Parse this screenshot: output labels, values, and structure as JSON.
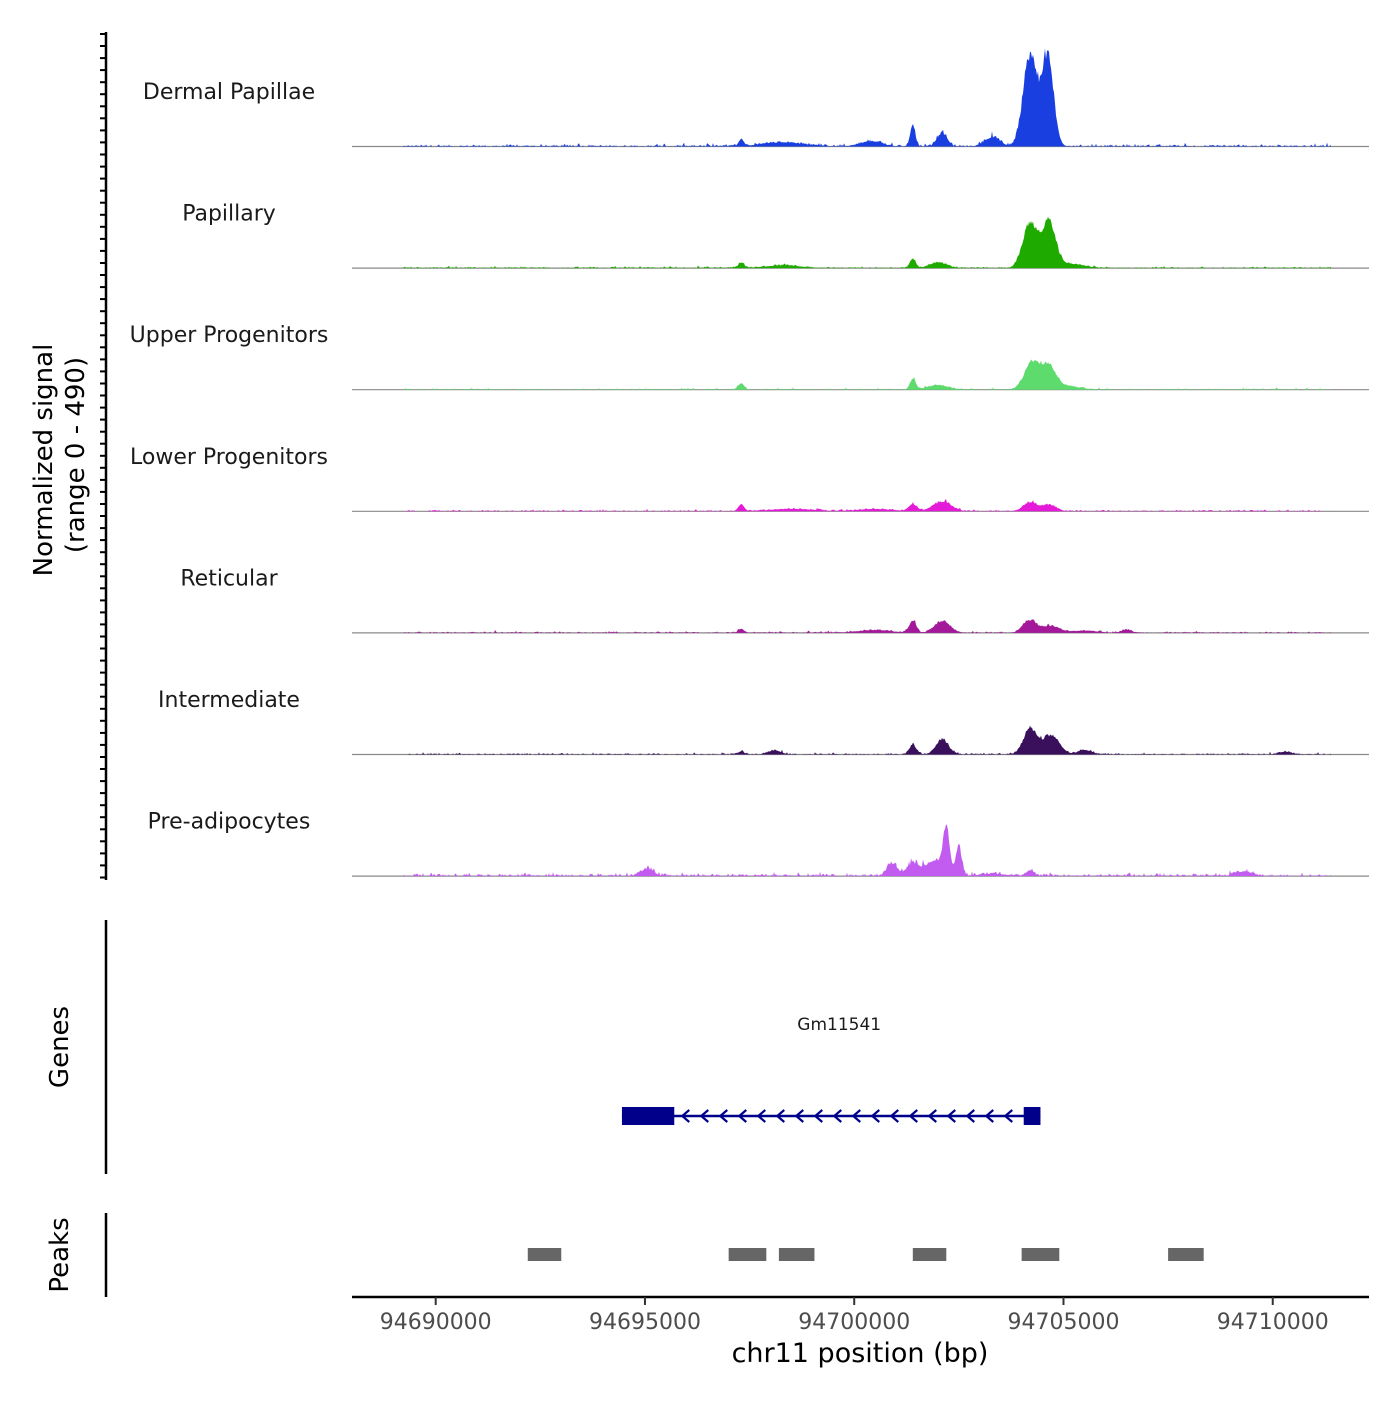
{
  "chart_data": {
    "type": "area",
    "ylabel_line1": "Normalized signal",
    "ylabel_line2": "(range 0 - 490)",
    "y_range": [
      0,
      490
    ],
    "xlabel": "chr11 position (bp)",
    "xlim": [
      94688000,
      94712300
    ],
    "x_ticks": [
      94690000,
      94695000,
      94700000,
      94705000,
      94710000
    ],
    "x_tick_labels": [
      "94690000",
      "94695000",
      "94700000",
      "94705000",
      "94710000"
    ],
    "signal_start": 94689200,
    "signal_end": 94711400,
    "tracks": [
      {
        "name": "Dermal Papillae",
        "color": "#1a3fe0",
        "peaks": [
          [
            94704200,
            405,
            160
          ],
          [
            94704620,
            400,
            140
          ],
          [
            94701400,
            95,
            60
          ],
          [
            94702100,
            60,
            120
          ],
          [
            94703300,
            40,
            180
          ],
          [
            94697300,
            30,
            60
          ],
          [
            94700400,
            22,
            250
          ],
          [
            94698300,
            18,
            500
          ]
        ],
        "noise": 9
      },
      {
        "name": "Papillary",
        "color": "#1faa00",
        "peaks": [
          [
            94704200,
            200,
            170
          ],
          [
            94704650,
            205,
            160
          ],
          [
            94701400,
            40,
            70
          ],
          [
            94702000,
            25,
            200
          ],
          [
            94697300,
            22,
            70
          ],
          [
            94705200,
            18,
            300
          ],
          [
            94698300,
            12,
            400
          ]
        ],
        "noise": 6
      },
      {
        "name": "Upper Progenitors",
        "color": "#5ddb6c",
        "peaks": [
          [
            94704250,
            120,
            180
          ],
          [
            94704650,
            100,
            170
          ],
          [
            94701400,
            45,
            70
          ],
          [
            94702000,
            20,
            250
          ],
          [
            94697300,
            28,
            70
          ],
          [
            94705100,
            15,
            300
          ]
        ],
        "noise": 5
      },
      {
        "name": "Lower Progenitors",
        "color": "#e51ad8",
        "peaks": [
          [
            94704200,
            38,
            160
          ],
          [
            94704650,
            28,
            170
          ],
          [
            94701400,
            30,
            100
          ],
          [
            94702100,
            42,
            220
          ],
          [
            94697300,
            30,
            70
          ],
          [
            94700500,
            10,
            400
          ],
          [
            94698500,
            10,
            500
          ]
        ],
        "noise": 6
      },
      {
        "name": "Reticular",
        "color": "#a3199a",
        "peaks": [
          [
            94704200,
            55,
            160
          ],
          [
            94704700,
            30,
            200
          ],
          [
            94701400,
            55,
            80
          ],
          [
            94702100,
            52,
            180
          ],
          [
            94697300,
            18,
            70
          ],
          [
            94706500,
            14,
            120
          ],
          [
            94700500,
            12,
            400
          ],
          [
            94705500,
            10,
            300
          ]
        ],
        "noise": 6
      },
      {
        "name": "Intermediate",
        "color": "#3a0f5c",
        "peaks": [
          [
            94704200,
            110,
            160
          ],
          [
            94704700,
            85,
            200
          ],
          [
            94701400,
            40,
            90
          ],
          [
            94702100,
            65,
            150
          ],
          [
            94705500,
            20,
            150
          ],
          [
            94698100,
            18,
            150
          ],
          [
            94697300,
            14,
            70
          ],
          [
            94710300,
            12,
            150
          ]
        ],
        "noise": 6
      },
      {
        "name": "Pre-adipocytes",
        "color": "#c25cf0",
        "peaks": [
          [
            94702200,
            200,
            80
          ],
          [
            94702500,
            130,
            70
          ],
          [
            94701400,
            55,
            150
          ],
          [
            94701900,
            65,
            200
          ],
          [
            94700900,
            55,
            120
          ],
          [
            94695050,
            30,
            150
          ],
          [
            94704200,
            25,
            90
          ],
          [
            94709300,
            18,
            200
          ],
          [
            94703300,
            10,
            300
          ]
        ],
        "noise": 11
      }
    ],
    "genes": {
      "label": "Genes",
      "items": [
        {
          "name": "Gm11541",
          "start": 94694450,
          "end": 94704450,
          "strand": "-",
          "exons": [
            [
              94694450,
              94695700
            ],
            [
              94704050,
              94704450
            ]
          ],
          "color": "#00008b"
        }
      ]
    },
    "peaks": {
      "label": "Peaks",
      "color": "#666666",
      "regions": [
        [
          94692200,
          94693000
        ],
        [
          94697000,
          94697900
        ],
        [
          94698200,
          94699050
        ],
        [
          94701400,
          94702200
        ],
        [
          94704000,
          94704900
        ],
        [
          94707500,
          94708350
        ]
      ]
    }
  }
}
